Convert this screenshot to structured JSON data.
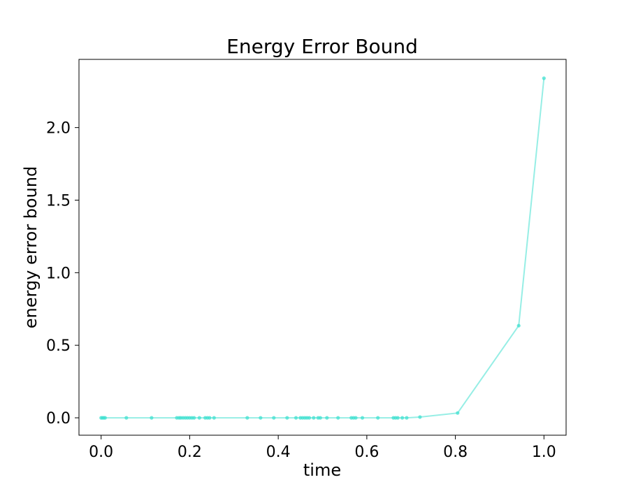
{
  "chart_data": {
    "type": "line",
    "title": "Energy Error Bound",
    "xlabel": "time",
    "ylabel": "energy error bound",
    "xlim": [
      -0.05,
      1.05
    ],
    "ylim": [
      -0.12,
      2.47
    ],
    "xticks": [
      0.0,
      0.2,
      0.4,
      0.6,
      0.8,
      1.0
    ],
    "xtick_labels": [
      "0.0",
      "0.2",
      "0.4",
      "0.6",
      "0.8",
      "1.0"
    ],
    "yticks": [
      0.0,
      0.5,
      1.0,
      1.5,
      2.0
    ],
    "ytick_labels": [
      "0.0",
      "0.5",
      "1.0",
      "1.5",
      "2.0"
    ],
    "grid": false,
    "color": "#40E0D0",
    "series": [
      {
        "x": [
          0.0,
          0.003,
          0.006,
          0.009,
          0.057,
          0.114,
          0.171,
          0.176,
          0.18,
          0.185,
          0.19,
          0.195,
          0.2,
          0.205,
          0.21,
          0.222,
          0.235,
          0.24,
          0.245,
          0.255,
          0.33,
          0.36,
          0.39,
          0.42,
          0.44,
          0.45,
          0.455,
          0.46,
          0.465,
          0.47,
          0.48,
          0.49,
          0.495,
          0.51,
          0.535,
          0.565,
          0.57,
          0.575,
          0.59,
          0.625,
          0.66,
          0.665,
          0.67,
          0.68,
          0.69,
          0.72,
          0.805,
          0.943,
          1.0
        ],
        "y": [
          0.0,
          0.0,
          0.0,
          0.0,
          0.0,
          0.0,
          0.0,
          0.0,
          0.0,
          0.0,
          0.0,
          0.0,
          0.0,
          0.0,
          0.0,
          0.0,
          0.0,
          0.0,
          0.0,
          0.0,
          0.0,
          0.0,
          0.0,
          0.0,
          0.0,
          0.0,
          0.0,
          0.0,
          0.0,
          0.0,
          0.0,
          0.0,
          0.0,
          0.0,
          0.0,
          0.0,
          0.0,
          0.0,
          0.0,
          0.0,
          0.0,
          0.0,
          0.0,
          0.0,
          0.0,
          0.005,
          0.033,
          0.635,
          2.34
        ]
      }
    ]
  }
}
